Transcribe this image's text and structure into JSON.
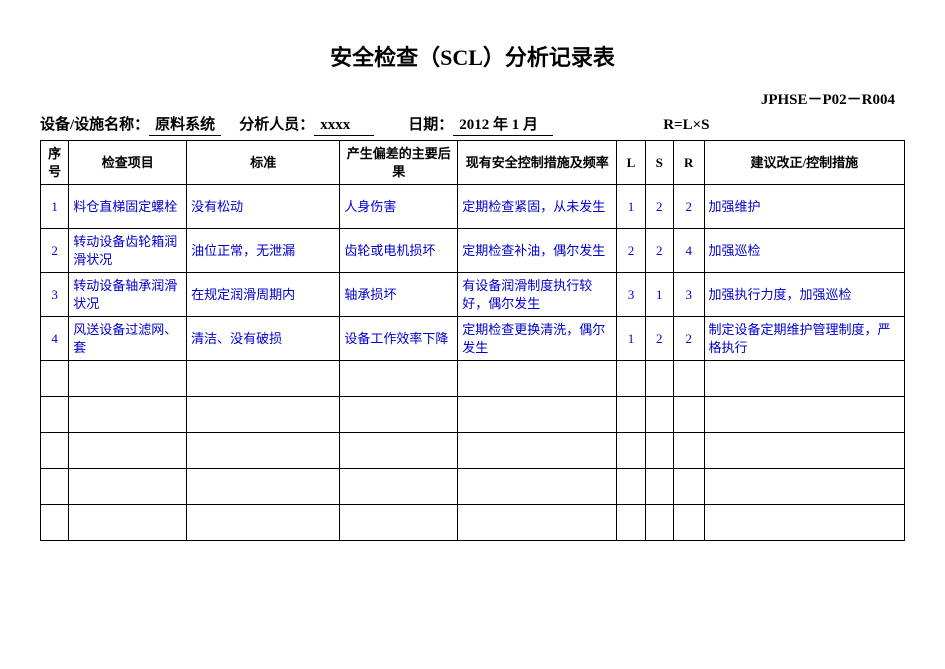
{
  "title": "安全检查（SCL）分析记录表",
  "doc_code": "JPHSE－P02－R004",
  "meta": {
    "equip_label": "设备/设施名称：",
    "equip_value": "原料系统",
    "analyst_label": "分析人员：",
    "analyst_value": "xxxx",
    "date_label": "日期：",
    "date_value": "2012 年 1 月",
    "formula": "R=L×S"
  },
  "headers": {
    "seq": "序号",
    "item": "检查项目",
    "std": "标准",
    "cons": "产生偏差的主要后果",
    "ctrl": "现有安全控制措施及频率",
    "l": "L",
    "s": "S",
    "r": "R",
    "sugg": "建议改正/控制措施"
  },
  "rows": [
    {
      "seq": "1",
      "item": "料仓直梯固定螺栓",
      "std": "没有松动",
      "cons": "人身伤害",
      "ctrl": "定期检查紧固，从未发生",
      "l": "1",
      "s": "2",
      "r": "2",
      "sugg": "加强维护"
    },
    {
      "seq": "2",
      "item": "转动设备齿轮箱润滑状况",
      "std": "油位正常，无泄漏",
      "cons": "齿轮或电机损坏",
      "ctrl": "定期检查补油，偶尔发生",
      "l": "2",
      "s": "2",
      "r": "4",
      "sugg": "加强巡检"
    },
    {
      "seq": "3",
      "item": "转动设备轴承润滑状况",
      "std": "在规定润滑周期内",
      "cons": "轴承损坏",
      "ctrl": "有设备润滑制度执行较好，偶尔发生",
      "l": "3",
      "s": "1",
      "r": "3",
      "sugg": "加强执行力度，加强巡检"
    },
    {
      "seq": "4",
      "item": "风送设备过滤网、套",
      "std": "清洁、没有破损",
      "cons": "设备工作效率下降",
      "ctrl": "定期检查更换清洗，偶尔发生",
      "l": "1",
      "s": "2",
      "r": "2",
      "sugg": "制定设备定期维护管理制度，严格执行"
    }
  ],
  "empty_rows": 5
}
